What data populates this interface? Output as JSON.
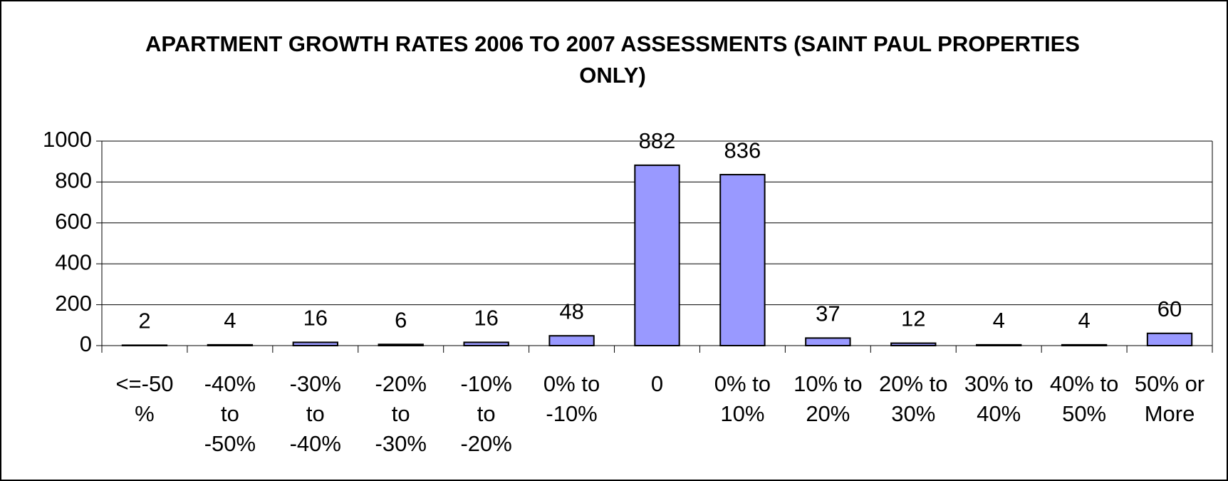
{
  "chart_data": {
    "type": "bar",
    "title": "APARTMENT GROWTH RATES 2006 TO 2007 ASSESSMENTS (SAINT PAUL PROPERTIES ONLY)",
    "categories": [
      "<=-50%",
      "-40% to -50%",
      "-30% to -40%",
      "-20% to -30%",
      "-10% to -20%",
      "0% to -10%",
      "0",
      "0% to 10%",
      "10% to 20%",
      "20% to 30%",
      "30% to 40%",
      "40% to 50%",
      "50% or More"
    ],
    "values": [
      2,
      4,
      16,
      6,
      16,
      48,
      882,
      836,
      37,
      12,
      4,
      4,
      60
    ],
    "color": "#9999ff",
    "ylim": [
      0,
      1000
    ],
    "yticks": [
      0,
      200,
      400,
      600,
      800,
      1000
    ],
    "grid": true
  }
}
